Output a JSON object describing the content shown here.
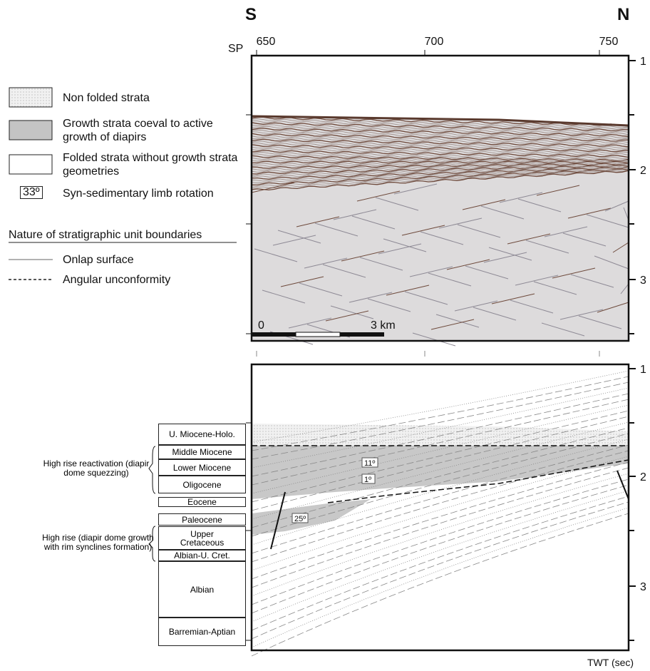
{
  "header": {
    "south": "S",
    "north": "N",
    "sp_label": "SP",
    "shot_points": [
      650,
      700,
      750
    ]
  },
  "legend": {
    "items": [
      {
        "label": "Non folded strata"
      },
      {
        "label": "Growth strata coeval to active growth of diapirs"
      },
      {
        "label": "Folded strata without growth strata geometries"
      }
    ],
    "rotation_symbol": "33º",
    "rotation_label": "Syn-sedimentary limb rotation",
    "boundaries_title": "Nature of stratigraphic unit boundaries",
    "boundaries": [
      {
        "label": "Onlap surface"
      },
      {
        "label": "Angular unconformity"
      }
    ]
  },
  "top_panel": {
    "twt_ticks": [
      1,
      2,
      3
    ],
    "scale_bar": {
      "start": "0",
      "end": "3 km"
    }
  },
  "bottom_panel": {
    "twt_ticks": [
      1,
      2,
      3
    ],
    "angles": [
      "11º",
      "1º",
      "25º"
    ],
    "axis_label": "TWT (sec)"
  },
  "stratigraphy": {
    "units": [
      "U. Miocene-Holo.",
      "Middle Miocene",
      "Lower Miocene",
      "Oligocene",
      "Eocene",
      "Paleocene",
      "Upper Cretaceous",
      "Albian-U. Cret.",
      "Albian",
      "Barremian-Aptian"
    ],
    "phases": [
      "High rise reactivation (diapir dome squezzing)",
      "High rise (diapir dome growth with rim synclines formation)"
    ]
  }
}
